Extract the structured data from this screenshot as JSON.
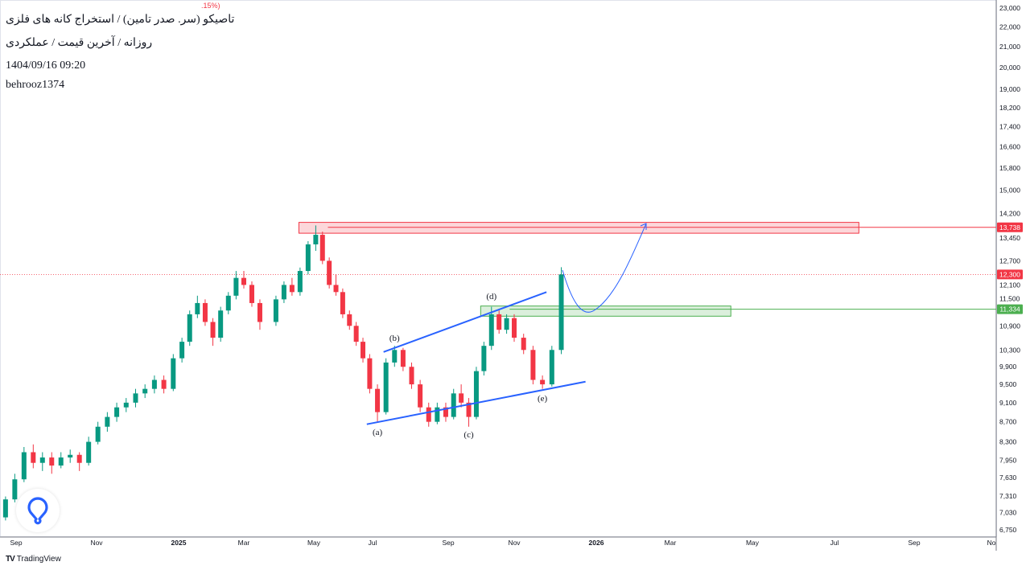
{
  "header": {
    "legend_fragment": ".15%)",
    "title": "تاصیکو (سر. صدر تامین) / استخراج کانه های فلزی",
    "subtitle": "روزانه / آخرین قیمت / عملکردی",
    "datetime": "1404/09/16 09:20",
    "author": "behrooz1374"
  },
  "footer": {
    "brand": "TradingView"
  },
  "colors": {
    "up": "#089981",
    "down": "#f23645",
    "resistance": "#f23645",
    "support": "#4caf50",
    "trendline": "#2962ff",
    "projection": "#2962ff"
  },
  "icons": {
    "brand_logo": "tradingview-logo",
    "watermark": "balloon-logo"
  },
  "chart_data": {
    "type": "candlestick",
    "y_scale": "log",
    "ylim": [
      6750,
      23000
    ],
    "grid": false,
    "y_ticks": [
      "23,000",
      "22,000",
      "21,000",
      "20,000",
      "19,000",
      "18,200",
      "17,400",
      "16,600",
      "15,800",
      "15,000",
      "14,200",
      "13,450",
      "12,700",
      "12,100",
      "11,500",
      "10,900",
      "10,300",
      "9,900",
      "9,500",
      "9,100",
      "8,700",
      "8,300",
      "7,950",
      "7,630",
      "7,310",
      "7,030",
      "6,750"
    ],
    "x_ticks": [
      {
        "date": "2024-09-01",
        "label": "Sep"
      },
      {
        "date": "2024-11-01",
        "label": "Nov"
      },
      {
        "date": "2025-01-01",
        "label": "2025"
      },
      {
        "date": "2025-03-01",
        "label": "Mar"
      },
      {
        "date": "2025-05-01",
        "label": "May"
      },
      {
        "date": "2025-07-01",
        "label": "Jul"
      },
      {
        "date": "2025-09-01",
        "label": "Sep"
      },
      {
        "date": "2025-11-01",
        "label": "Nov"
      },
      {
        "date": "2026-01-01",
        "label": "2026"
      },
      {
        "date": "2026-03-01",
        "label": "Mar"
      },
      {
        "date": "2026-05-01",
        "label": "May"
      },
      {
        "date": "2026-07-01",
        "label": "Jul"
      },
      {
        "date": "2026-09-01",
        "label": "Sep"
      },
      {
        "date": "2026-11-01",
        "label": "No"
      }
    ],
    "price_labels": [
      {
        "value": 13738,
        "text": "13,738",
        "color": "#f23645"
      },
      {
        "value": 12300,
        "text": "12,300",
        "color": "#f23645"
      },
      {
        "value": 11334,
        "text": "11,334",
        "color": "#4caf50"
      }
    ],
    "candles": [
      [
        "2024-08-24",
        6950,
        7300,
        6900,
        7250
      ],
      [
        "2024-08-31",
        7250,
        7700,
        7200,
        7600
      ],
      [
        "2024-09-07",
        7600,
        8200,
        7550,
        8100
      ],
      [
        "2024-09-14",
        8100,
        8250,
        7800,
        7900
      ],
      [
        "2024-09-21",
        7900,
        8100,
        7750,
        8000
      ],
      [
        "2024-09-28",
        8000,
        8100,
        7700,
        7850
      ],
      [
        "2024-10-05",
        7850,
        8100,
        7800,
        8000
      ],
      [
        "2024-10-12",
        8000,
        8150,
        7900,
        8050
      ],
      [
        "2024-10-19",
        8050,
        8100,
        7750,
        7900
      ],
      [
        "2024-10-26",
        7900,
        8400,
        7850,
        8300
      ],
      [
        "2024-11-02",
        8300,
        8700,
        8250,
        8600
      ],
      [
        "2024-11-09",
        8600,
        8900,
        8500,
        8800
      ],
      [
        "2024-11-16",
        8800,
        9100,
        8700,
        9000
      ],
      [
        "2024-11-23",
        9000,
        9200,
        8900,
        9100
      ],
      [
        "2024-11-30",
        9100,
        9400,
        9000,
        9300
      ],
      [
        "2024-12-07",
        9300,
        9500,
        9200,
        9400
      ],
      [
        "2024-12-14",
        9400,
        9700,
        9300,
        9600
      ],
      [
        "2024-12-21",
        9600,
        9700,
        9300,
        9400
      ],
      [
        "2024-12-28",
        9400,
        10200,
        9350,
        10100
      ],
      [
        "2025-01-04",
        10100,
        10600,
        10000,
        10500
      ],
      [
        "2025-01-11",
        10500,
        11300,
        10400,
        11200
      ],
      [
        "2025-01-18",
        11200,
        11700,
        11100,
        11500
      ],
      [
        "2025-01-25",
        11500,
        11600,
        10900,
        11000
      ],
      [
        "2025-02-01",
        11000,
        11100,
        10400,
        10600
      ],
      [
        "2025-02-08",
        10600,
        11400,
        10500,
        11300
      ],
      [
        "2025-02-15",
        11300,
        11800,
        11200,
        11700
      ],
      [
        "2025-02-22",
        11700,
        12400,
        11600,
        12200
      ],
      [
        "2025-03-01",
        12200,
        12400,
        11900,
        12000
      ],
      [
        "2025-03-08",
        12000,
        12100,
        11400,
        11500
      ],
      [
        "2025-03-15",
        11500,
        11600,
        10800,
        11000
      ],
      [
        "2025-03-29",
        11000,
        11700,
        10900,
        11600
      ],
      [
        "2025-04-05",
        11600,
        12100,
        11500,
        12000
      ],
      [
        "2025-04-12",
        12000,
        12200,
        11700,
        11800
      ],
      [
        "2025-04-19",
        11800,
        12500,
        11700,
        12400
      ],
      [
        "2025-04-26",
        12400,
        13300,
        12300,
        13200
      ],
      [
        "2025-05-03",
        13200,
        13800,
        13000,
        13500
      ],
      [
        "2025-05-10",
        13500,
        13600,
        12600,
        12700
      ],
      [
        "2025-05-17",
        12700,
        12800,
        11900,
        12000
      ],
      [
        "2025-05-24",
        12000,
        12300,
        11700,
        11800
      ],
      [
        "2025-05-31",
        11800,
        11900,
        11100,
        11200
      ],
      [
        "2025-06-07",
        11200,
        11300,
        10800,
        10900
      ],
      [
        "2025-06-14",
        10900,
        11000,
        10400,
        10500
      ],
      [
        "2025-06-21",
        10500,
        10600,
        10000,
        10100
      ],
      [
        "2025-06-28",
        10100,
        10200,
        9300,
        9400
      ],
      [
        "2025-07-05",
        9400,
        9500,
        8700,
        8900
      ],
      [
        "2025-07-12",
        8900,
        10100,
        8850,
        10000
      ],
      [
        "2025-07-19",
        10000,
        10400,
        9900,
        10300
      ],
      [
        "2025-07-26",
        10300,
        10350,
        9800,
        9900
      ],
      [
        "2025-08-02",
        9900,
        10000,
        9400,
        9500
      ],
      [
        "2025-08-09",
        9500,
        9600,
        8900,
        9000
      ],
      [
        "2025-08-16",
        9000,
        9100,
        8600,
        8700
      ],
      [
        "2025-08-23",
        8700,
        9100,
        8650,
        9000
      ],
      [
        "2025-08-30",
        9000,
        9100,
        8700,
        8800
      ],
      [
        "2025-09-06",
        8800,
        9400,
        8750,
        9300
      ],
      [
        "2025-09-13",
        9300,
        9500,
        9000,
        9100
      ],
      [
        "2025-09-20",
        9100,
        9200,
        8600,
        8800
      ],
      [
        "2025-09-27",
        8800,
        9900,
        8750,
        9800
      ],
      [
        "2025-10-04",
        9800,
        10500,
        9700,
        10400
      ],
      [
        "2025-10-11",
        10400,
        11400,
        10300,
        11200
      ],
      [
        "2025-10-18",
        11200,
        11300,
        10700,
        10800
      ],
      [
        "2025-10-25",
        10800,
        11200,
        10700,
        11100
      ],
      [
        "2025-11-01",
        11100,
        11200,
        10500,
        10600
      ],
      [
        "2025-11-08",
        10600,
        10700,
        10200,
        10300
      ],
      [
        "2025-11-15",
        10300,
        10400,
        9500,
        9600
      ],
      [
        "2025-11-22",
        9600,
        9700,
        9400,
        9500
      ],
      [
        "2025-11-29",
        9500,
        10400,
        9450,
        10300
      ],
      [
        "2025-12-06",
        10300,
        12510,
        10200,
        12300
      ]
    ],
    "annotations": {
      "wave_labels": [
        {
          "text": "(a)",
          "date": "2025-07-05",
          "price": 8500
        },
        {
          "text": "(b)",
          "date": "2025-07-19",
          "price": 10600
        },
        {
          "text": "(c)",
          "date": "2025-09-20",
          "price": 8450
        },
        {
          "text": "(d)",
          "date": "2025-10-11",
          "price": 11700
        },
        {
          "text": "(e)",
          "date": "2025-11-22",
          "price": 9200
        }
      ],
      "trendlines": [
        {
          "from": [
            "2025-06-25",
            8650
          ],
          "to": [
            "2025-12-24",
            9560
          ]
        },
        {
          "from": [
            "2025-07-10",
            10250
          ],
          "to": [
            "2025-11-25",
            11800
          ]
        }
      ],
      "zones": [
        {
          "from": "2025-04-18",
          "to": "2026-07-20",
          "top": 13900,
          "bottom": 13550,
          "level": 13738,
          "color": "#f23645"
        },
        {
          "from": "2025-10-01",
          "to": "2026-04-15",
          "top": 11420,
          "bottom": 11150,
          "level": 11334,
          "color": "#4caf50"
        }
      ]
    }
  }
}
